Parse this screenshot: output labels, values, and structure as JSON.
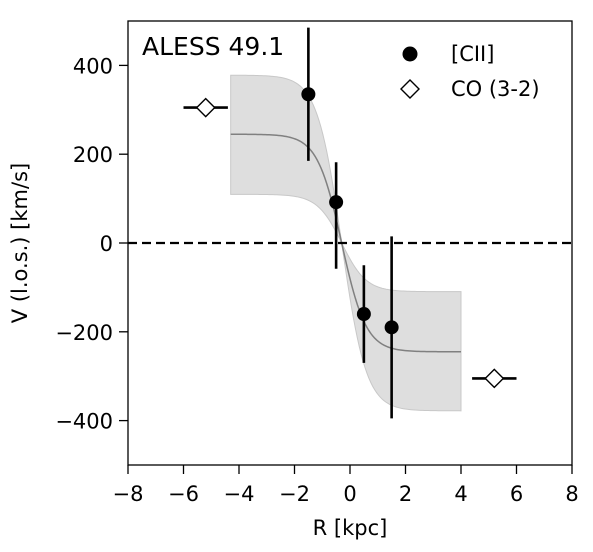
{
  "chart_data": {
    "type": "scatter",
    "title": "ALESS 49.1",
    "xlabel": "R [kpc]",
    "ylabel": "V (l.o.s.) [km/s]",
    "xlim": [
      -8,
      8
    ],
    "ylim": [
      -500,
      500
    ],
    "xticks": [
      -8,
      -6,
      -4,
      -2,
      0,
      2,
      4,
      6,
      8
    ],
    "xtick_labels": [
      "−8",
      "−6",
      "−4",
      "−2",
      "0",
      "2",
      "4",
      "6",
      "8"
    ],
    "yticks": [
      -400,
      -200,
      0,
      200,
      400
    ],
    "ytick_labels": [
      "−400",
      "−200",
      "0",
      "200",
      "400"
    ],
    "grid": false,
    "legend_position": "top-right",
    "series": [
      {
        "name": "[CII]",
        "marker": "circle",
        "color": "#000000",
        "points": [
          {
            "x": -1.5,
            "y": 335,
            "yerr_low": 150,
            "yerr_high": 150
          },
          {
            "x": -0.5,
            "y": 92,
            "yerr_low": 150,
            "yerr_high": 90
          },
          {
            "x": 0.5,
            "y": -160,
            "yerr_low": 110,
            "yerr_high": 110
          },
          {
            "x": 1.5,
            "y": -190,
            "yerr_low": 205,
            "yerr_high": 205
          }
        ]
      },
      {
        "name": "CO (3-2)",
        "marker": "diamond",
        "color": "#000000",
        "points": [
          {
            "x": -5.2,
            "y": 305,
            "xerr": 0.8
          },
          {
            "x": 5.2,
            "y": -305,
            "xerr": 0.8
          }
        ]
      }
    ],
    "model": {
      "color": "#808080",
      "band_color": "#d0d0d0",
      "x_range": [
        -4.3,
        4.0
      ],
      "center": -0.3,
      "v_amplitude": 245,
      "band_amplitude": 378,
      "scale": 0.22
    },
    "zero_line": {
      "y": 0,
      "style": "dashed",
      "color": "#000000"
    }
  }
}
